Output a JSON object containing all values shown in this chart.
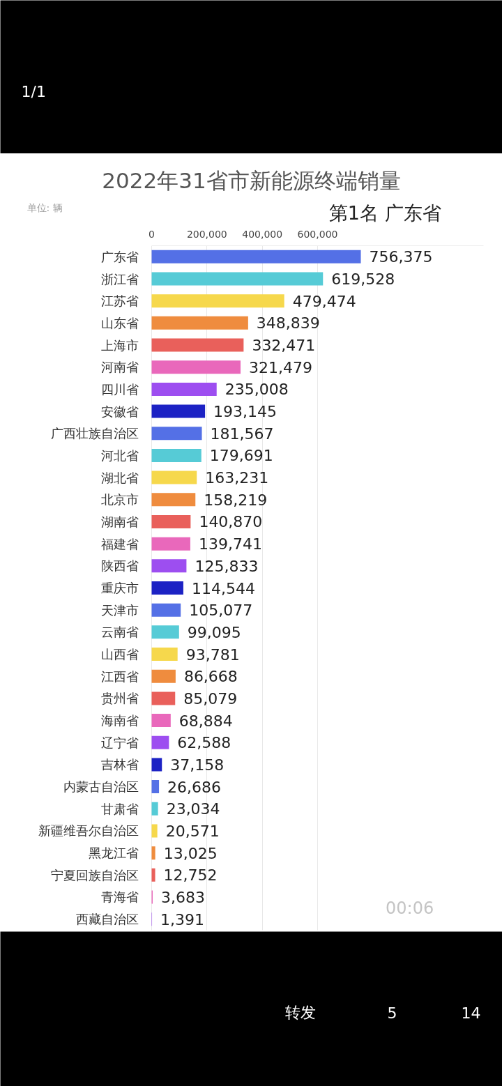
{
  "chart_data": {
    "type": "bar",
    "orientation": "horizontal",
    "title": "2022年31省市新能源终端销量",
    "subtitle": "第1名 广东省",
    "categories": [
      "广东省",
      "浙江省",
      "江苏省",
      "山东省",
      "上海市",
      "河南省",
      "四川省",
      "安徽省",
      "广西壮族自治区",
      "河北省",
      "湖北省",
      "北京市",
      "湖南省",
      "福建省",
      "陕西省",
      "重庆市",
      "天津市",
      "云南省",
      "山西省",
      "江西省",
      "贵州省",
      "海南省",
      "辽宁省",
      "吉林省",
      "内蒙古自治区",
      "甘肃省",
      "新疆维吾尔自治区",
      "黑龙江省",
      "宁夏回族自治区",
      "青海省",
      "西藏自治区"
    ],
    "values": [
      756375,
      619528,
      479474,
      348839,
      332471,
      321479,
      235008,
      193145,
      181567,
      179691,
      163231,
      158219,
      140870,
      139741,
      125833,
      114544,
      105077,
      99095,
      93781,
      86668,
      85079,
      68884,
      62588,
      37158,
      26686,
      23034,
      20571,
      13025,
      12752,
      3683,
      1391
    ],
    "value_labels": [
      "756,375",
      "619,528",
      "479,474",
      "348,839",
      "332,471",
      "321,479",
      "235,008",
      "193,145",
      "181,567",
      "179,691",
      "163,231",
      "158,219",
      "140,870",
      "139,741",
      "125,833",
      "114,544",
      "105,077",
      "99,095",
      "93,781",
      "86,668",
      "85,079",
      "68,884",
      "62,588",
      "37,158",
      "26,686",
      "23,034",
      "20,571",
      "13,025",
      "12,752",
      "3,683",
      "1,391"
    ],
    "colors": [
      "#5470e6",
      "#56cbd6",
      "#f6d84c",
      "#ef8c3e",
      "#e9605b",
      "#e968bb",
      "#9d4ef0",
      "#1c22c4",
      "#5470e6",
      "#56cbd6",
      "#f6d84c",
      "#ef8c3e",
      "#e9605b",
      "#e968bb",
      "#9d4ef0",
      "#1c22c4",
      "#5470e6",
      "#56cbd6",
      "#f6d84c",
      "#ef8c3e",
      "#e9605b",
      "#e968bb",
      "#9d4ef0",
      "#1c22c4",
      "#5470e6",
      "#56cbd6",
      "#f6d84c",
      "#ef8c3e",
      "#e9605b",
      "#e968bb",
      "#9d4ef0"
    ],
    "xlim": [
      0,
      1200000
    ],
    "xticks": [
      0,
      {
        "value": 200000,
        "label": "200,000"
      },
      {
        "value": 400000,
        "label": "400,000"
      },
      {
        "value": 600000,
        "label": "600,000"
      }
    ],
    "grid": "x",
    "annotations": [
      "单位: 辆",
      "00:06",
      "1/1",
      "转发",
      "5",
      "14"
    ]
  }
}
